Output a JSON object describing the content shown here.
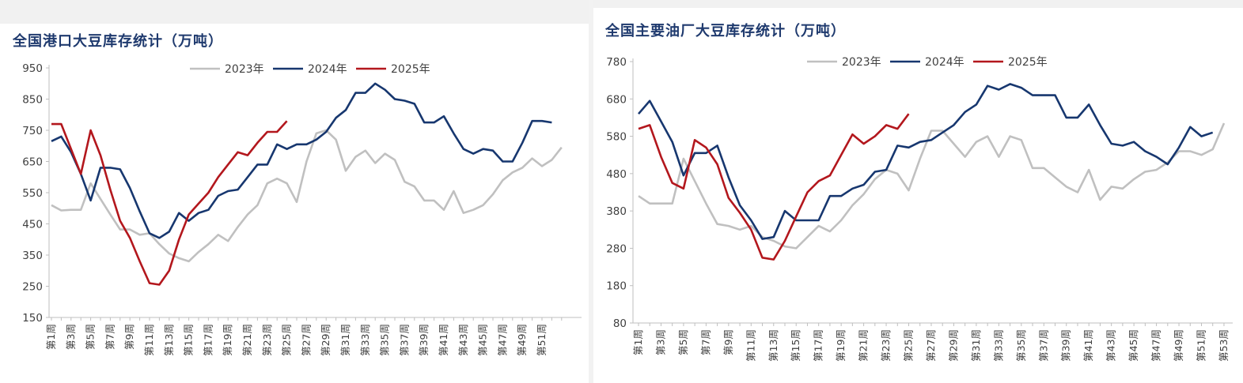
{
  "colors": {
    "y2023": "#c0c0c0",
    "y2024": "#17376f",
    "y2025": "#b3171d",
    "axis": "#bfbfbf",
    "tick_text": "#404040",
    "title": "#1f3a6e"
  },
  "chart_data": [
    {
      "type": "line",
      "title": "全国港口大豆库存统计（万吨）",
      "xlabel": "",
      "ylabel": "",
      "ylim": [
        150,
        950
      ],
      "yticks": [
        "150",
        "250",
        "350",
        "450",
        "550",
        "650",
        "750",
        "850",
        "950"
      ],
      "categories": [
        "第1周",
        "第2周",
        "第3周",
        "第4周",
        "第5周",
        "第6周",
        "第7周",
        "第8周",
        "第9周",
        "第10周",
        "第11周",
        "第12周",
        "第13周",
        "第14周",
        "第15周",
        "第16周",
        "第17周",
        "第18周",
        "第19周",
        "第20周",
        "第21周",
        "第22周",
        "第23周",
        "第24周",
        "第25周",
        "第26周",
        "第27周",
        "第28周",
        "第29周",
        "第30周",
        "第31周",
        "第32周",
        "第33周",
        "第34周",
        "第35周",
        "第36周",
        "第37周",
        "第38周",
        "第39周",
        "第40周",
        "第41周",
        "第42周",
        "第43周",
        "第44周",
        "第45周",
        "第46周",
        "第47周",
        "第48周",
        "第49周",
        "第50周",
        "第51周",
        "第52周",
        "第53周"
      ],
      "tick_labels": [
        "第1周",
        "第3周",
        "第5周",
        "第7周",
        "第9周",
        "第11周",
        "第13周",
        "第15周",
        "第17周",
        "第19周",
        "第21周",
        "第23周",
        "第25周",
        "第27周",
        "第29周",
        "第31周",
        "第33周",
        "第35周",
        "第37周",
        "第39周",
        "第41周",
        "第43周",
        "第45周",
        "第47周",
        "第49周",
        "第51周"
      ],
      "legend_position": "top-center",
      "grid": false,
      "series": [
        {
          "name": "2023年",
          "key": "y2023",
          "values": [
            510,
            493,
            495,
            495,
            580,
            530,
            480,
            432,
            432,
            415,
            420,
            385,
            355,
            340,
            330,
            360,
            385,
            415,
            395,
            440,
            480,
            510,
            580,
            595,
            580,
            520,
            650,
            740,
            750,
            720,
            620,
            665,
            685,
            645,
            675,
            655,
            585,
            570,
            525,
            525,
            495,
            555,
            485,
            495,
            510,
            545,
            590,
            615,
            630,
            660,
            635,
            655,
            695
          ]
        },
        {
          "name": "2024年",
          "key": "y2024",
          "values": [
            715,
            730,
            680,
            610,
            525,
            630,
            630,
            625,
            565,
            490,
            420,
            405,
            425,
            485,
            460,
            485,
            495,
            540,
            555,
            560,
            600,
            640,
            640,
            705,
            690,
            705,
            705,
            720,
            745,
            790,
            815,
            870,
            870,
            900,
            880,
            850,
            845,
            835,
            775,
            775,
            795,
            740,
            690,
            675,
            690,
            685,
            650,
            650,
            710,
            780,
            780,
            775,
            null
          ]
        },
        {
          "name": "2025年",
          "key": "y2025",
          "values": [
            770,
            770,
            690,
            610,
            750,
            670,
            560,
            460,
            405,
            330,
            260,
            255,
            300,
            400,
            480,
            515,
            550,
            600,
            640,
            680,
            670,
            710,
            745,
            745,
            780,
            null,
            null,
            null,
            null,
            null,
            null,
            null,
            null,
            null,
            null,
            null,
            null,
            null,
            null,
            null,
            null,
            null,
            null,
            null,
            null,
            null,
            null,
            null,
            null,
            null,
            null,
            null,
            null
          ]
        }
      ]
    },
    {
      "type": "line",
      "title": "全国主要油厂大豆库存统计（万吨）",
      "xlabel": "",
      "ylabel": "",
      "ylim": [
        80,
        780
      ],
      "yticks": [
        "80",
        "180",
        "280",
        "380",
        "480",
        "580",
        "680",
        "780"
      ],
      "categories": [
        "第1周",
        "第2周",
        "第3周",
        "第4周",
        "第5周",
        "第6周",
        "第7周",
        "第8周",
        "第9周",
        "第10周",
        "第11周",
        "第12周",
        "第13周",
        "第14周",
        "第15周",
        "第16周",
        "第17周",
        "第18周",
        "第19周",
        "第20周",
        "第21周",
        "第22周",
        "第23周",
        "第24周",
        "第25周",
        "第26周",
        "第27周",
        "第28周",
        "第29周",
        "第30周",
        "第31周",
        "第32周",
        "第33周",
        "第34周",
        "第35周",
        "第36周",
        "第37周",
        "第38周",
        "第39周",
        "第40周",
        "第41周",
        "第42周",
        "第43周",
        "第44周",
        "第45周",
        "第46周",
        "第47周",
        "第48周",
        "第49周",
        "第50周",
        "第51周",
        "第52周",
        "第53周"
      ],
      "tick_labels": [
        "第1周",
        "第3周",
        "第5周",
        "第7周",
        "第9周",
        "第11周",
        "第13周",
        "第15周",
        "第17周",
        "第19周",
        "第21周",
        "第23周",
        "第25周",
        "第27周",
        "第29周",
        "第31周",
        "第33周",
        "第35周",
        "第37周",
        "第39周",
        "第41周",
        "第43周",
        "第45周",
        "第47周",
        "第49周",
        "第51周",
        "第53周"
      ],
      "legend_position": "top-center",
      "grid": false,
      "series": [
        {
          "name": "2023年",
          "key": "y2023",
          "values": [
            420,
            400,
            400,
            400,
            520,
            460,
            400,
            345,
            340,
            330,
            340,
            310,
            300,
            285,
            280,
            310,
            340,
            325,
            355,
            395,
            425,
            465,
            490,
            480,
            435,
            520,
            595,
            595,
            560,
            525,
            565,
            580,
            525,
            580,
            570,
            495,
            495,
            470,
            445,
            430,
            490,
            410,
            445,
            440,
            465,
            485,
            490,
            510,
            540,
            540,
            530,
            545,
            615
          ]
        },
        {
          "name": "2024年",
          "key": "y2024",
          "values": [
            640,
            675,
            620,
            565,
            475,
            535,
            535,
            555,
            470,
            395,
            355,
            305,
            310,
            380,
            355,
            355,
            355,
            420,
            420,
            440,
            450,
            485,
            490,
            555,
            550,
            565,
            570,
            590,
            610,
            645,
            665,
            715,
            705,
            720,
            710,
            690,
            690,
            690,
            630,
            630,
            665,
            610,
            560,
            555,
            565,
            540,
            525,
            505,
            550,
            605,
            580,
            590,
            null
          ]
        },
        {
          "name": "2025年",
          "key": "y2025",
          "values": [
            600,
            610,
            525,
            455,
            440,
            570,
            550,
            505,
            415,
            375,
            330,
            255,
            250,
            300,
            365,
            430,
            460,
            475,
            530,
            585,
            560,
            580,
            610,
            600,
            640,
            null,
            null,
            null,
            null,
            null,
            null,
            null,
            null,
            null,
            null,
            null,
            null,
            null,
            null,
            null,
            null,
            null,
            null,
            null,
            null,
            null,
            null,
            null,
            null,
            null,
            null,
            null,
            null
          ]
        }
      ]
    }
  ]
}
